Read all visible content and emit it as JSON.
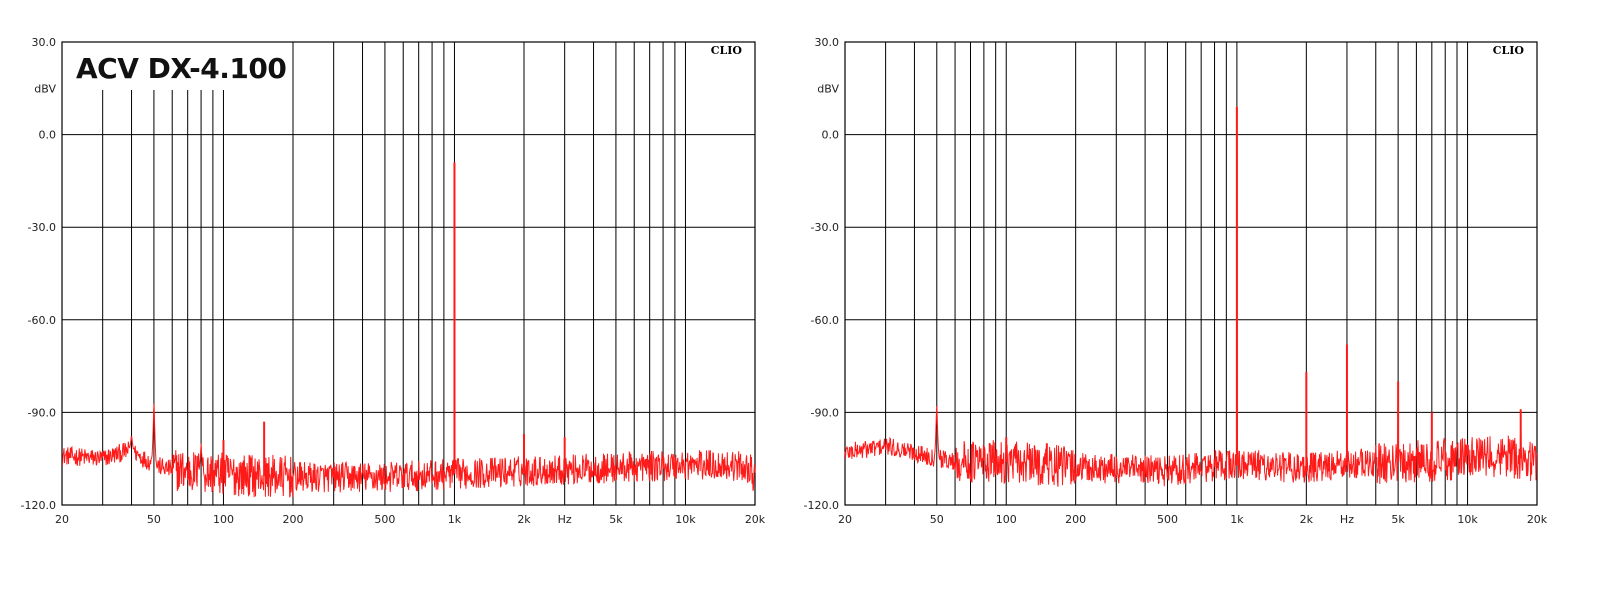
{
  "chart_data": [
    {
      "type": "line",
      "title": "ACV DX-4.100",
      "brand": "CLIO",
      "xlabel": "Hz",
      "ylabel": "dBV",
      "x_scale": "log",
      "xlim": [
        20,
        20000
      ],
      "ylim": [
        -120,
        30
      ],
      "x_ticks": [
        {
          "value": 20,
          "label": "20"
        },
        {
          "value": 50,
          "label": "50"
        },
        {
          "value": 100,
          "label": "100"
        },
        {
          "value": 200,
          "label": "200"
        },
        {
          "value": 500,
          "label": "500"
        },
        {
          "value": 1000,
          "label": "1k"
        },
        {
          "value": 2000,
          "label": "2k"
        },
        {
          "value": 5000,
          "label": "5k"
        },
        {
          "value": 10000,
          "label": "10k"
        },
        {
          "value": 20000,
          "label": "20k"
        }
      ],
      "y_ticks": [
        {
          "value": 30,
          "label": "30.0"
        },
        {
          "value": 0,
          "label": "0.0"
        },
        {
          "value": -30,
          "label": "-30.0"
        },
        {
          "value": -60,
          "label": "-60.0"
        },
        {
          "value": -90,
          "label": "-90.0"
        },
        {
          "value": -120,
          "label": "-120.0"
        }
      ],
      "grid": true,
      "series_color": "#ff1a1a",
      "noise_floor": [
        [
          20,
          -104
        ],
        [
          30,
          -105
        ],
        [
          40,
          -102
        ],
        [
          45,
          -105
        ],
        [
          55,
          -108
        ],
        [
          70,
          -109
        ],
        [
          100,
          -110
        ],
        [
          200,
          -111
        ],
        [
          300,
          -111
        ],
        [
          500,
          -111
        ],
        [
          1000,
          -110
        ],
        [
          2000,
          -109
        ],
        [
          5000,
          -108
        ],
        [
          10000,
          -107
        ],
        [
          15000,
          -107
        ],
        [
          19000,
          -108
        ],
        [
          20000,
          -112
        ]
      ],
      "peaks": [
        {
          "x": 40,
          "y": -97
        },
        {
          "x": 50,
          "y": -85
        },
        {
          "x": 80,
          "y": -100
        },
        {
          "x": 100,
          "y": -99
        },
        {
          "x": 150,
          "y": -93
        },
        {
          "x": 1000,
          "y": -9
        },
        {
          "x": 2000,
          "y": -97
        },
        {
          "x": 3000,
          "y": -98
        }
      ]
    },
    {
      "type": "line",
      "title": "",
      "brand": "CLIO",
      "xlabel": "Hz",
      "ylabel": "dBV",
      "x_scale": "log",
      "xlim": [
        20,
        20000
      ],
      "ylim": [
        -120,
        30
      ],
      "x_ticks": [
        {
          "value": 20,
          "label": "20"
        },
        {
          "value": 50,
          "label": "50"
        },
        {
          "value": 100,
          "label": "100"
        },
        {
          "value": 200,
          "label": "200"
        },
        {
          "value": 500,
          "label": "500"
        },
        {
          "value": 1000,
          "label": "1k"
        },
        {
          "value": 2000,
          "label": "2k"
        },
        {
          "value": 5000,
          "label": "5k"
        },
        {
          "value": 10000,
          "label": "10k"
        },
        {
          "value": 20000,
          "label": "20k"
        }
      ],
      "y_ticks": [
        {
          "value": 30,
          "label": "30.0"
        },
        {
          "value": 0,
          "label": "0.0"
        },
        {
          "value": -30,
          "label": "-30.0"
        },
        {
          "value": -60,
          "label": "-60.0"
        },
        {
          "value": -90,
          "label": "-90.0"
        },
        {
          "value": -120,
          "label": "-120.0"
        }
      ],
      "grid": true,
      "series_color": "#ff1a1a",
      "noise_floor": [
        [
          20,
          -103
        ],
        [
          30,
          -101
        ],
        [
          40,
          -103
        ],
        [
          45,
          -104
        ],
        [
          60,
          -106
        ],
        [
          100,
          -106
        ],
        [
          200,
          -108
        ],
        [
          500,
          -109
        ],
        [
          900,
          -107
        ],
        [
          1100,
          -107
        ],
        [
          2000,
          -108
        ],
        [
          5000,
          -106
        ],
        [
          10000,
          -105
        ],
        [
          15000,
          -104
        ],
        [
          20000,
          -106
        ]
      ],
      "peaks": [
        {
          "x": 50,
          "y": -86
        },
        {
          "x": 100,
          "y": -98
        },
        {
          "x": 150,
          "y": -100
        },
        {
          "x": 1000,
          "y": 9
        },
        {
          "x": 2000,
          "y": -77
        },
        {
          "x": 3000,
          "y": -68
        },
        {
          "x": 5000,
          "y": -80
        },
        {
          "x": 7000,
          "y": -90
        },
        {
          "x": 17000,
          "y": -89
        }
      ]
    }
  ]
}
